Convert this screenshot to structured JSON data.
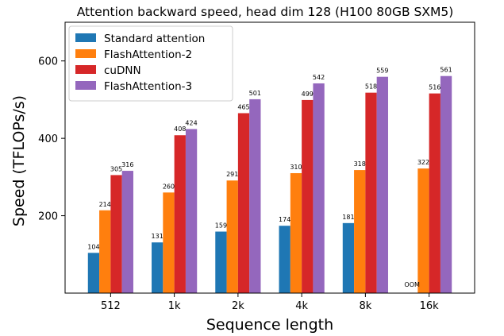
{
  "chart_data": {
    "type": "bar",
    "title": "Attention backward speed, head dim 128 (H100 80GB SXM5)",
    "xlabel": "Sequence length",
    "ylabel": "Speed (TFLOPs/s)",
    "categories": [
      "512",
      "1k",
      "2k",
      "4k",
      "8k",
      "16k"
    ],
    "ylim": [
      0,
      700
    ],
    "yticks": [
      200,
      400,
      600
    ],
    "legend_position": "top-left",
    "grid": false,
    "series": [
      {
        "name": "Standard attention",
        "color": "#1f77b4",
        "values": [
          104,
          131,
          159,
          174,
          181,
          null
        ],
        "labels": [
          "104",
          "131",
          "159",
          "174",
          "181",
          "OOM"
        ]
      },
      {
        "name": "FlashAttention-2",
        "color": "#ff7f0e",
        "values": [
          214,
          260,
          291,
          310,
          318,
          322
        ],
        "labels": [
          "214",
          "260",
          "291",
          "310",
          "318",
          "322"
        ]
      },
      {
        "name": "cuDNN",
        "color": "#d62728",
        "values": [
          305,
          408,
          465,
          499,
          518,
          516
        ],
        "labels": [
          "305",
          "408",
          "465",
          "499",
          "518",
          "516"
        ]
      },
      {
        "name": "FlashAttention-3",
        "color": "#9467bd",
        "values": [
          316,
          424,
          501,
          542,
          559,
          561
        ],
        "labels": [
          "316",
          "424",
          "501",
          "542",
          "559",
          "561"
        ]
      }
    ]
  }
}
